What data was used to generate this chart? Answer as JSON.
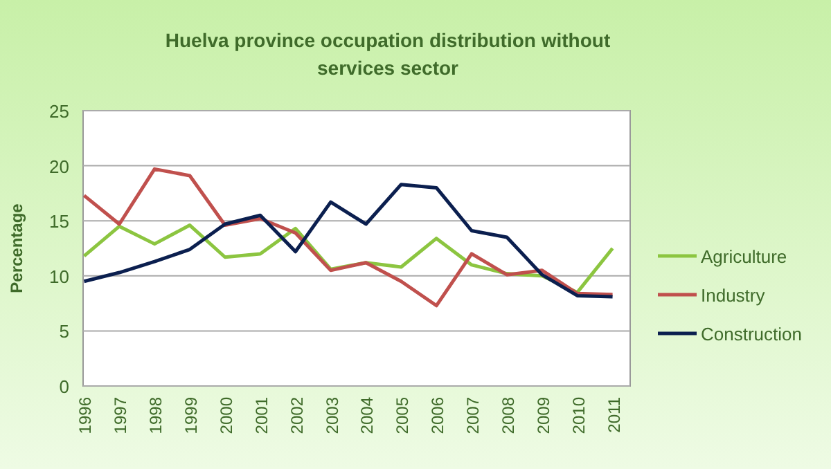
{
  "chart_data": {
    "type": "line",
    "title": "Huelva province occupation distribution without services sector",
    "ylabel": "Percentage",
    "categories": [
      "1996",
      "1997",
      "1998",
      "1999",
      "2000",
      "2001",
      "2002",
      "2003",
      "2004",
      "2005",
      "2006",
      "2007",
      "2008",
      "2009",
      "2010",
      "2011"
    ],
    "series": [
      {
        "name": "Agriculture",
        "color": "#8cc540",
        "values": [
          11.8,
          14.5,
          12.9,
          14.6,
          11.7,
          12.0,
          14.3,
          10.6,
          11.2,
          10.8,
          13.4,
          11.0,
          10.2,
          10.0,
          8.5,
          12.5
        ]
      },
      {
        "name": "Industry",
        "color": "#c0504d",
        "values": [
          17.3,
          14.7,
          19.7,
          19.1,
          14.6,
          15.2,
          13.9,
          10.5,
          11.2,
          9.5,
          7.3,
          12.0,
          10.1,
          10.5,
          8.4,
          8.3
        ]
      },
      {
        "name": "Construction",
        "color": "#0b1f4f",
        "values": [
          9.5,
          10.3,
          11.3,
          12.4,
          14.7,
          15.5,
          12.2,
          16.7,
          14.7,
          18.3,
          18.0,
          14.1,
          13.5,
          10.1,
          8.2,
          8.1
        ]
      }
    ],
    "ylim": [
      0,
      25
    ],
    "yticks": [
      0,
      5,
      10,
      15,
      20,
      25
    ],
    "grid": "y",
    "legend": "right",
    "marker": "none",
    "line_style": "solid"
  }
}
